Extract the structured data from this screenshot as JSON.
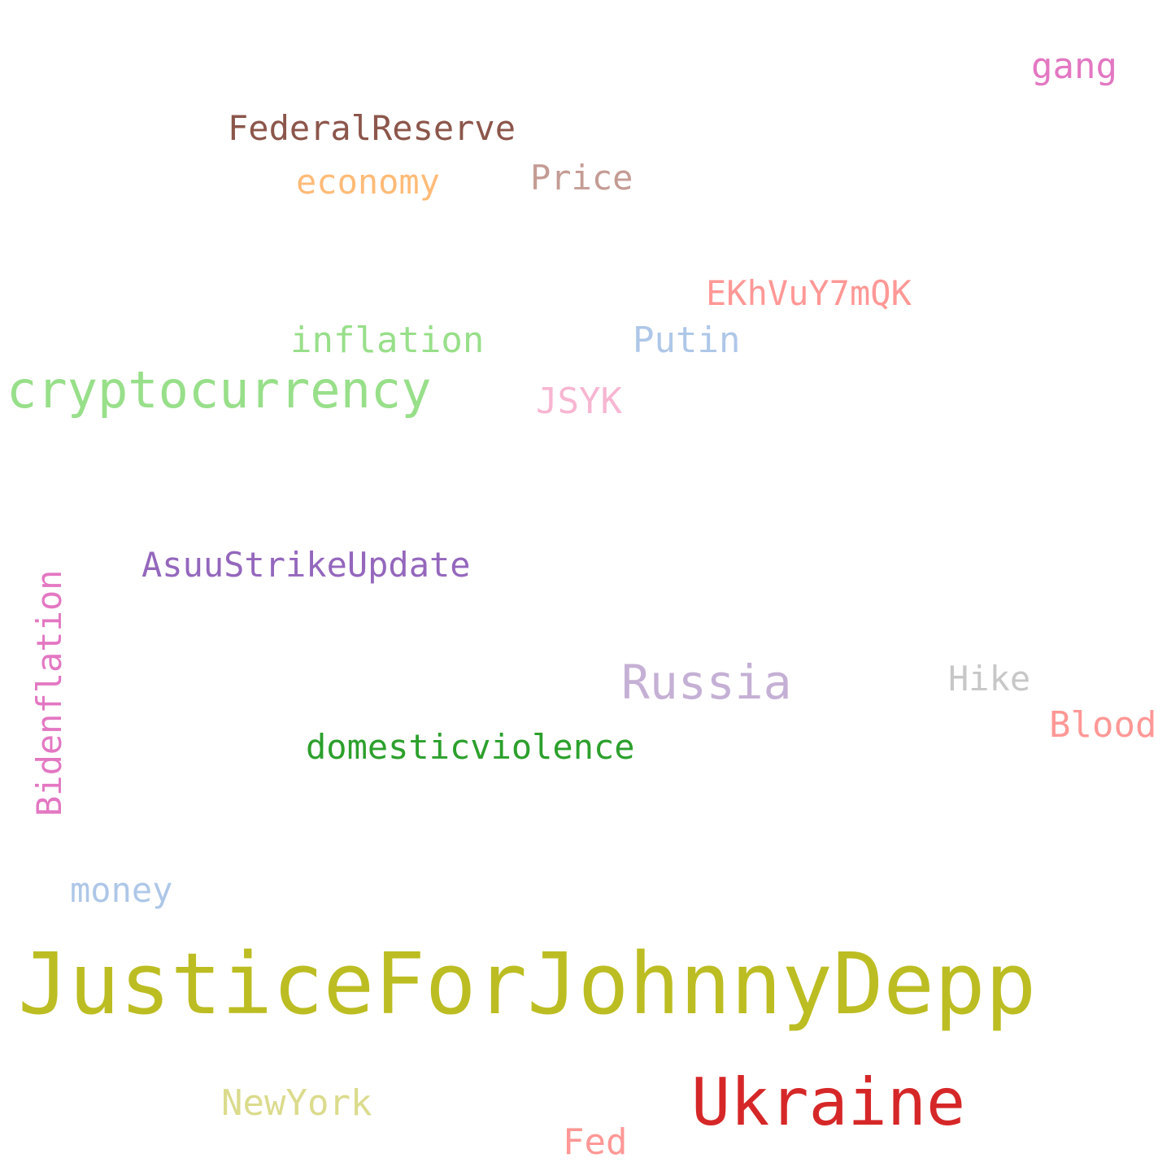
{
  "words": {
    "gang": {
      "text": "gang",
      "color": "#e377c2"
    },
    "federalreserve": {
      "text": "FederalReserve",
      "color": "#8c564b"
    },
    "economy": {
      "text": "economy",
      "color": "#ffbb78"
    },
    "price": {
      "text": "Price",
      "color": "#c49c94"
    },
    "ekhv": {
      "text": "EKhVuY7mQK",
      "color": "#ff9896"
    },
    "inflation": {
      "text": "inflation",
      "color": "#98df8a"
    },
    "putin": {
      "text": "Putin",
      "color": "#aec7e8"
    },
    "crypto": {
      "text": "cryptocurrency",
      "color": "#98df8a"
    },
    "jsyk": {
      "text": "JSYK",
      "color": "#f7b6d2"
    },
    "asuu": {
      "text": "AsuuStrikeUpdate",
      "color": "#9467bd"
    },
    "russia": {
      "text": "Russia",
      "color": "#c5b0d5"
    },
    "hike": {
      "text": "Hike",
      "color": "#c7c7c7"
    },
    "blood": {
      "text": "Blood",
      "color": "#ff9896"
    },
    "domestic": {
      "text": "domesticviolence",
      "color": "#2ca02c"
    },
    "bidenflation": {
      "text": "Bidenflation",
      "color": "#e377c2"
    },
    "money": {
      "text": "money",
      "color": "#aec7e8"
    },
    "justice": {
      "text": "JusticeForJohnnyDepp",
      "color": "#bcbd22"
    },
    "newyork": {
      "text": "NewYork",
      "color": "#dbdb8d"
    },
    "ukraine": {
      "text": "Ukraine",
      "color": "#d62728"
    },
    "fed": {
      "text": "Fed",
      "color": "#ff9896"
    }
  }
}
